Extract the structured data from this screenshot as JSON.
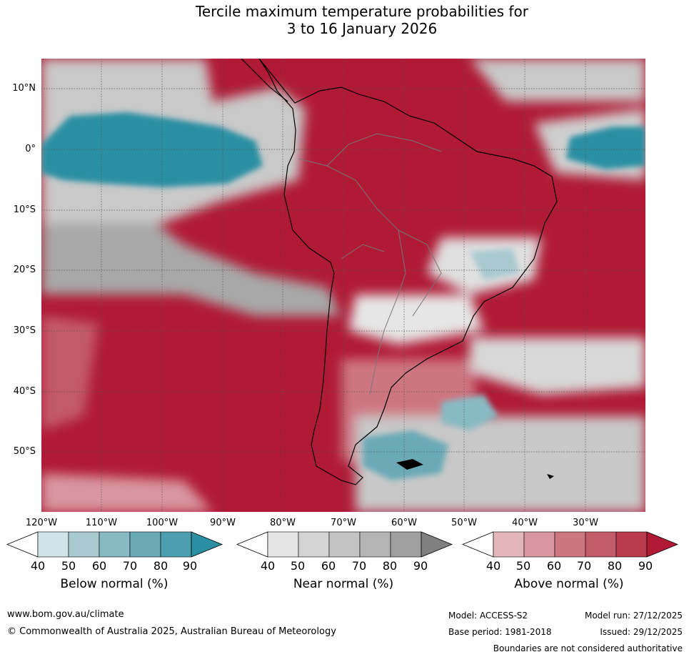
{
  "title": {
    "line1": "Tercile maximum temperature probabilities for",
    "line2": "3 to 16 January 2026"
  },
  "map": {
    "region": "South America",
    "latitude_labels": [
      "10°N",
      "0°",
      "10°S",
      "20°S",
      "30°S",
      "40°S",
      "50°S"
    ],
    "longitude_labels": [
      "120°W",
      "110°W",
      "100°W",
      "90°W",
      "80°W",
      "70°W",
      "60°W",
      "50°W",
      "40°W",
      "30°W"
    ]
  },
  "legend": {
    "below": {
      "label": "Below normal (%)",
      "ticks": [
        "40",
        "50",
        "60",
        "70",
        "80",
        "90"
      ],
      "colors": [
        "#ffffff",
        "#cfe3e8",
        "#a8c9d0",
        "#88bac3",
        "#6aaab6",
        "#4c9fae",
        "#2a8fa3"
      ]
    },
    "near": {
      "label": "Near normal (%)",
      "ticks": [
        "40",
        "50",
        "60",
        "70",
        "80",
        "90"
      ],
      "colors": [
        "#ffffff",
        "#e4e4e4",
        "#d4d4d4",
        "#c4c4c4",
        "#b4b4b4",
        "#a0a0a0",
        "#808080"
      ]
    },
    "above": {
      "label": "Above normal (%)",
      "ticks": [
        "40",
        "50",
        "60",
        "70",
        "80",
        "90"
      ],
      "colors": [
        "#ffffff",
        "#e3b6bc",
        "#d8969f",
        "#cd7680",
        "#c25a67",
        "#b83a4b",
        "#b01a35"
      ]
    }
  },
  "footer": {
    "url": "www.bom.gov.au/climate",
    "copyright": "© Commonwealth of Australia 2025, Australian Bureau of Meteorology",
    "model": "Model: ACCESS-S2",
    "base_period": "Base period: 1981-2018",
    "model_run": "Model run: 27/12/2025",
    "issued": "Issued: 29/12/2025",
    "disclaimer": "Boundaries are not considered authoritative"
  }
}
